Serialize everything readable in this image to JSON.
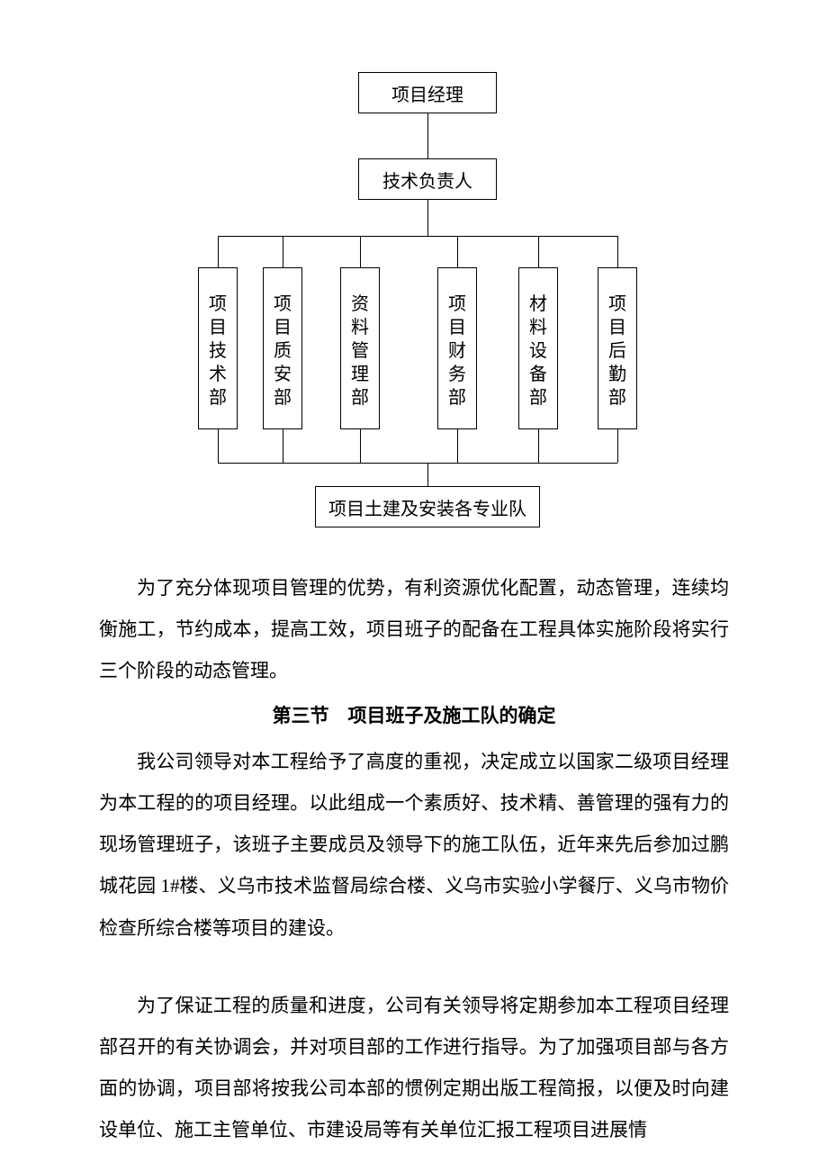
{
  "chart": {
    "type": "tree",
    "background_color": "#ffffff",
    "border_color": "#000000",
    "line_color": "#000000",
    "font_size": 20,
    "top": "项目经理",
    "mid": "技术负责人",
    "departments": [
      "项目技术部",
      "项目质安部",
      "资料管理部",
      "项目财务部",
      "材料设备部",
      "项目后勤部"
    ],
    "bottom": "项目土建及安装各专业队",
    "nodes": [
      {
        "id": "top",
        "label": "项目经理",
        "level": 0
      },
      {
        "id": "mid",
        "label": "技术负责人",
        "level": 1
      },
      {
        "id": "d1",
        "label": "项目技术部",
        "level": 2
      },
      {
        "id": "d2",
        "label": "项目质安部",
        "level": 2
      },
      {
        "id": "d3",
        "label": "资料管理部",
        "level": 2
      },
      {
        "id": "d4",
        "label": "项目财务部",
        "level": 2
      },
      {
        "id": "d5",
        "label": "材料设备部",
        "level": 2
      },
      {
        "id": "d6",
        "label": "项目后勤部",
        "level": 2
      },
      {
        "id": "bot",
        "label": "项目土建及安装各专业队",
        "level": 3
      }
    ],
    "edges": [
      [
        "top",
        "mid"
      ],
      [
        "mid",
        "d1"
      ],
      [
        "mid",
        "d2"
      ],
      [
        "mid",
        "d3"
      ],
      [
        "mid",
        "d4"
      ],
      [
        "mid",
        "d5"
      ],
      [
        "mid",
        "d6"
      ],
      [
        "d1",
        "bot"
      ],
      [
        "d2",
        "bot"
      ],
      [
        "d3",
        "bot"
      ],
      [
        "d4",
        "bot"
      ],
      [
        "d5",
        "bot"
      ],
      [
        "d6",
        "bot"
      ]
    ]
  },
  "text": {
    "p1": "为了充分体现项目管理的优势，有利资源优化配置，动态管理，连续均衡施工，节约成本，提高工效，项目班子的配备在工程具体实施阶段将实行三个阶段的动态管理。",
    "heading": "第三节　项目班子及施工队的确定",
    "p2": "我公司领导对本工程给予了高度的重视，决定成立以国家二级项目经理为本工程的的项目经理。以此组成一个素质好、技术精、善管理的强有力的现场管理班子，该班子主要成员及领导下的施工队伍，近年来先后参加过鹏城花园 1#楼、义乌市技术监督局综合楼、义乌市实验小学餐厅、义乌市物价检查所综合楼等项目的建设。",
    "p3": "为了保证工程的质量和进度，公司有关领导将定期参加本工程项目经理部召开的有关协调会，并对项目部的工作进行指导。为了加强项目部与各方面的协调，项目部将按我公司本部的惯例定期出版工程简报，以便及时向建设单位、施工主管单位、市建设局等有关单位汇报工程项目进展情"
  },
  "style": {
    "body_font_size": 21,
    "body_line_height": 2.2,
    "text_color": "#000000",
    "heading_weight": "bold"
  }
}
